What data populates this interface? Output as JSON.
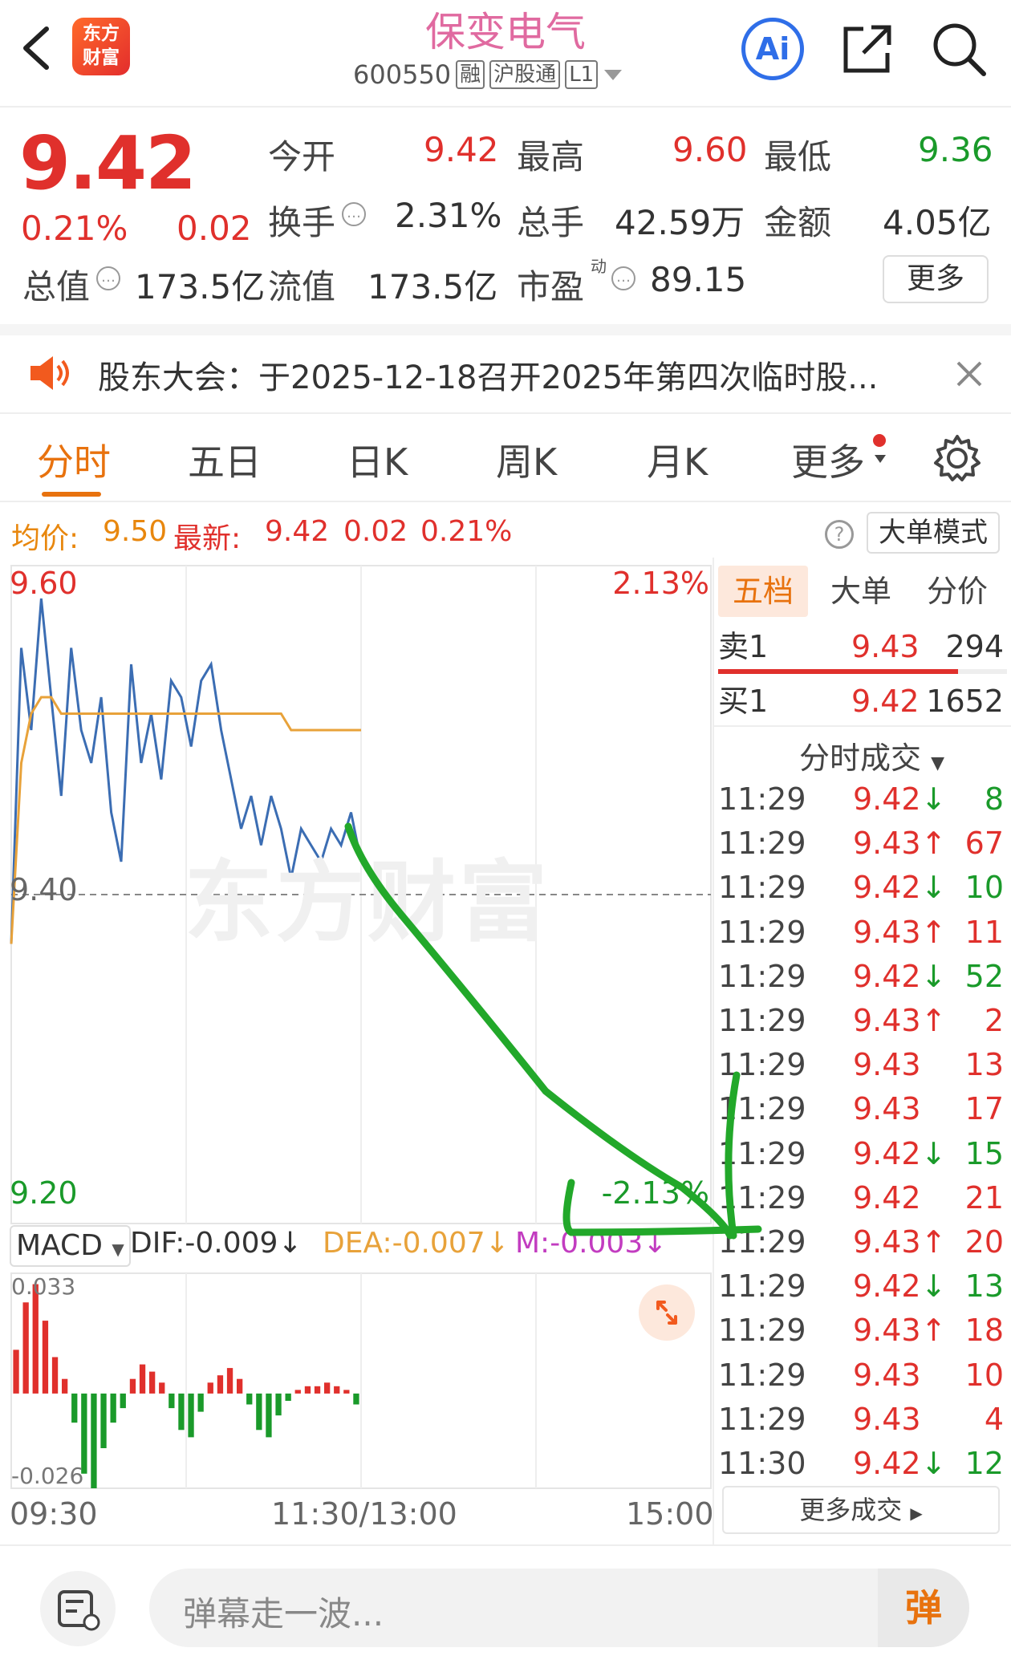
{
  "header": {
    "stock_name": "保变电气",
    "stock_code": "600550",
    "tags": [
      "融",
      "沪股通",
      "L1"
    ],
    "logo_text_line1": "东方",
    "logo_text_line2": "财富",
    "ai_label": "Ai"
  },
  "quote": {
    "price": "9.42",
    "change_pct": "0.21%",
    "change": "0.02",
    "open_label": "今开",
    "open": "9.42",
    "high_label": "最高",
    "high": "9.60",
    "low_label": "最低",
    "low": "9.36",
    "turnover_label": "换手",
    "turnover": "2.31%",
    "volume_label": "总手",
    "volume": "42.59万",
    "amount_label": "金额",
    "amount": "4.05亿",
    "mktcap_label": "总值",
    "mktcap": "173.5亿",
    "float_label": "流值",
    "float_cap": "173.5亿",
    "pe_label": "市盈",
    "pe_sup": "动",
    "pe": "89.15",
    "more_label": "更多"
  },
  "notice": {
    "text": "股东大会：于2025-12-18召开2025年第四次临时股..."
  },
  "tabs": [
    {
      "label": "分时",
      "active": true
    },
    {
      "label": "五日"
    },
    {
      "label": "日K"
    },
    {
      "label": "周K"
    },
    {
      "label": "月K"
    },
    {
      "label": "更多"
    }
  ],
  "info_row": {
    "avg_label": "均价:",
    "avg": "9.50",
    "latest_label": "最新:",
    "latest": "9.42",
    "change": "0.02",
    "change_pct": "0.21%",
    "mode_label": "大单模式"
  },
  "chart_labels": {
    "y_top": "9.60",
    "y_mid": "9.40",
    "y_bottom": "9.20",
    "pct_top": "2.13%",
    "pct_bottom": "-2.13%",
    "watermark": "东方财富",
    "macd_label": "MACD",
    "dif": "DIF:-0.009",
    "dea": "DEA:-0.007",
    "m": "M:-0.003",
    "macd_top": "0.033",
    "macd_bottom": "-0.026",
    "x_start": "09:30",
    "x_mid": "11:30/13:00",
    "x_end": "15:00"
  },
  "chart_data": {
    "type": "line",
    "title": "",
    "xlabel": "",
    "ylabel": "",
    "ylim": [
      9.2,
      9.6
    ],
    "x_ticks": [
      "09:30",
      "11:30/13:00",
      "15:00"
    ],
    "reference_price": 9.4,
    "series": [
      {
        "values": [
          9.37,
          9.55,
          9.5,
          9.58,
          9.52,
          9.46,
          9.55,
          9.5,
          9.48,
          9.52,
          9.45,
          9.42,
          9.54,
          9.48,
          9.51,
          9.47,
          9.53,
          9.52,
          9.49,
          9.53,
          9.54,
          9.5,
          9.47,
          9.44,
          9.46,
          9.43,
          9.46,
          9.44,
          9.41,
          9.44,
          9.43,
          9.42,
          9.44,
          9.43,
          9.45,
          9.42
        ]
      },
      {
        "values": [
          9.37,
          9.48,
          9.51,
          9.52,
          9.52,
          9.51,
          9.51,
          9.51,
          9.51,
          9.51,
          9.51,
          9.51,
          9.51,
          9.51,
          9.51,
          9.51,
          9.51,
          9.51,
          9.51,
          9.51,
          9.51,
          9.51,
          9.51,
          9.51,
          9.51,
          9.51,
          9.51,
          9.51,
          9.5,
          9.5,
          9.5,
          9.5,
          9.5,
          9.5,
          9.5,
          9.5
        ]
      }
    ],
    "macd": {
      "ylim": [
        -0.026,
        0.033
      ],
      "histogram": [
        0.012,
        0.025,
        0.03,
        0.02,
        0.01,
        0.004,
        -0.008,
        -0.022,
        -0.026,
        -0.015,
        -0.008,
        -0.004,
        0.004,
        0.008,
        0.006,
        0.003,
        -0.004,
        -0.01,
        -0.012,
        -0.005,
        0.003,
        0.005,
        0.007,
        0.004,
        -0.003,
        -0.01,
        -0.012,
        -0.006,
        -0.002,
        0.001,
        0.002,
        0.002,
        0.003,
        0.002,
        0.001,
        -0.003
      ]
    }
  },
  "side": {
    "tabs": [
      "五档",
      "大单",
      "分价"
    ],
    "sell1_label": "卖1",
    "sell1_price": "9.43",
    "sell1_vol": "294",
    "buy1_label": "买1",
    "buy1_price": "9.42",
    "buy1_vol": "1652",
    "trades_header": "分时成交",
    "trades": [
      {
        "time": "11:29",
        "price": "9.42",
        "dir": "down",
        "vol": "8"
      },
      {
        "time": "11:29",
        "price": "9.43",
        "dir": "up",
        "vol": "67"
      },
      {
        "time": "11:29",
        "price": "9.42",
        "dir": "down",
        "vol": "10"
      },
      {
        "time": "11:29",
        "price": "9.43",
        "dir": "up",
        "vol": "11"
      },
      {
        "time": "11:29",
        "price": "9.42",
        "dir": "down",
        "vol": "52"
      },
      {
        "time": "11:29",
        "price": "9.43",
        "dir": "up",
        "vol": "2"
      },
      {
        "time": "11:29",
        "price": "9.43",
        "dir": "",
        "vol": "13"
      },
      {
        "time": "11:29",
        "price": "9.43",
        "dir": "",
        "vol": "17"
      },
      {
        "time": "11:29",
        "price": "9.42",
        "dir": "down",
        "vol": "15"
      },
      {
        "time": "11:29",
        "price": "9.42",
        "dir": "",
        "vol": "21"
      },
      {
        "time": "11:29",
        "price": "9.43",
        "dir": "up",
        "vol": "20"
      },
      {
        "time": "11:29",
        "price": "9.42",
        "dir": "down",
        "vol": "13"
      },
      {
        "time": "11:29",
        "price": "9.43",
        "dir": "up",
        "vol": "18"
      },
      {
        "time": "11:29",
        "price": "9.43",
        "dir": "",
        "vol": "10"
      },
      {
        "time": "11:29",
        "price": "9.43",
        "dir": "",
        "vol": "4"
      },
      {
        "time": "11:30",
        "price": "9.42",
        "dir": "down",
        "vol": "12"
      }
    ],
    "more_trades_label": "更多成交"
  },
  "bottom": {
    "danmu_placeholder": "弹幕走一波...",
    "danmu_button": "弹"
  },
  "colors": {
    "up": "#e0302c",
    "down": "#1a9a2a",
    "accent": "#e8720e",
    "price_line": "#3b6db3",
    "avg_line": "#e8a23a",
    "annotation": "#22a82a"
  }
}
